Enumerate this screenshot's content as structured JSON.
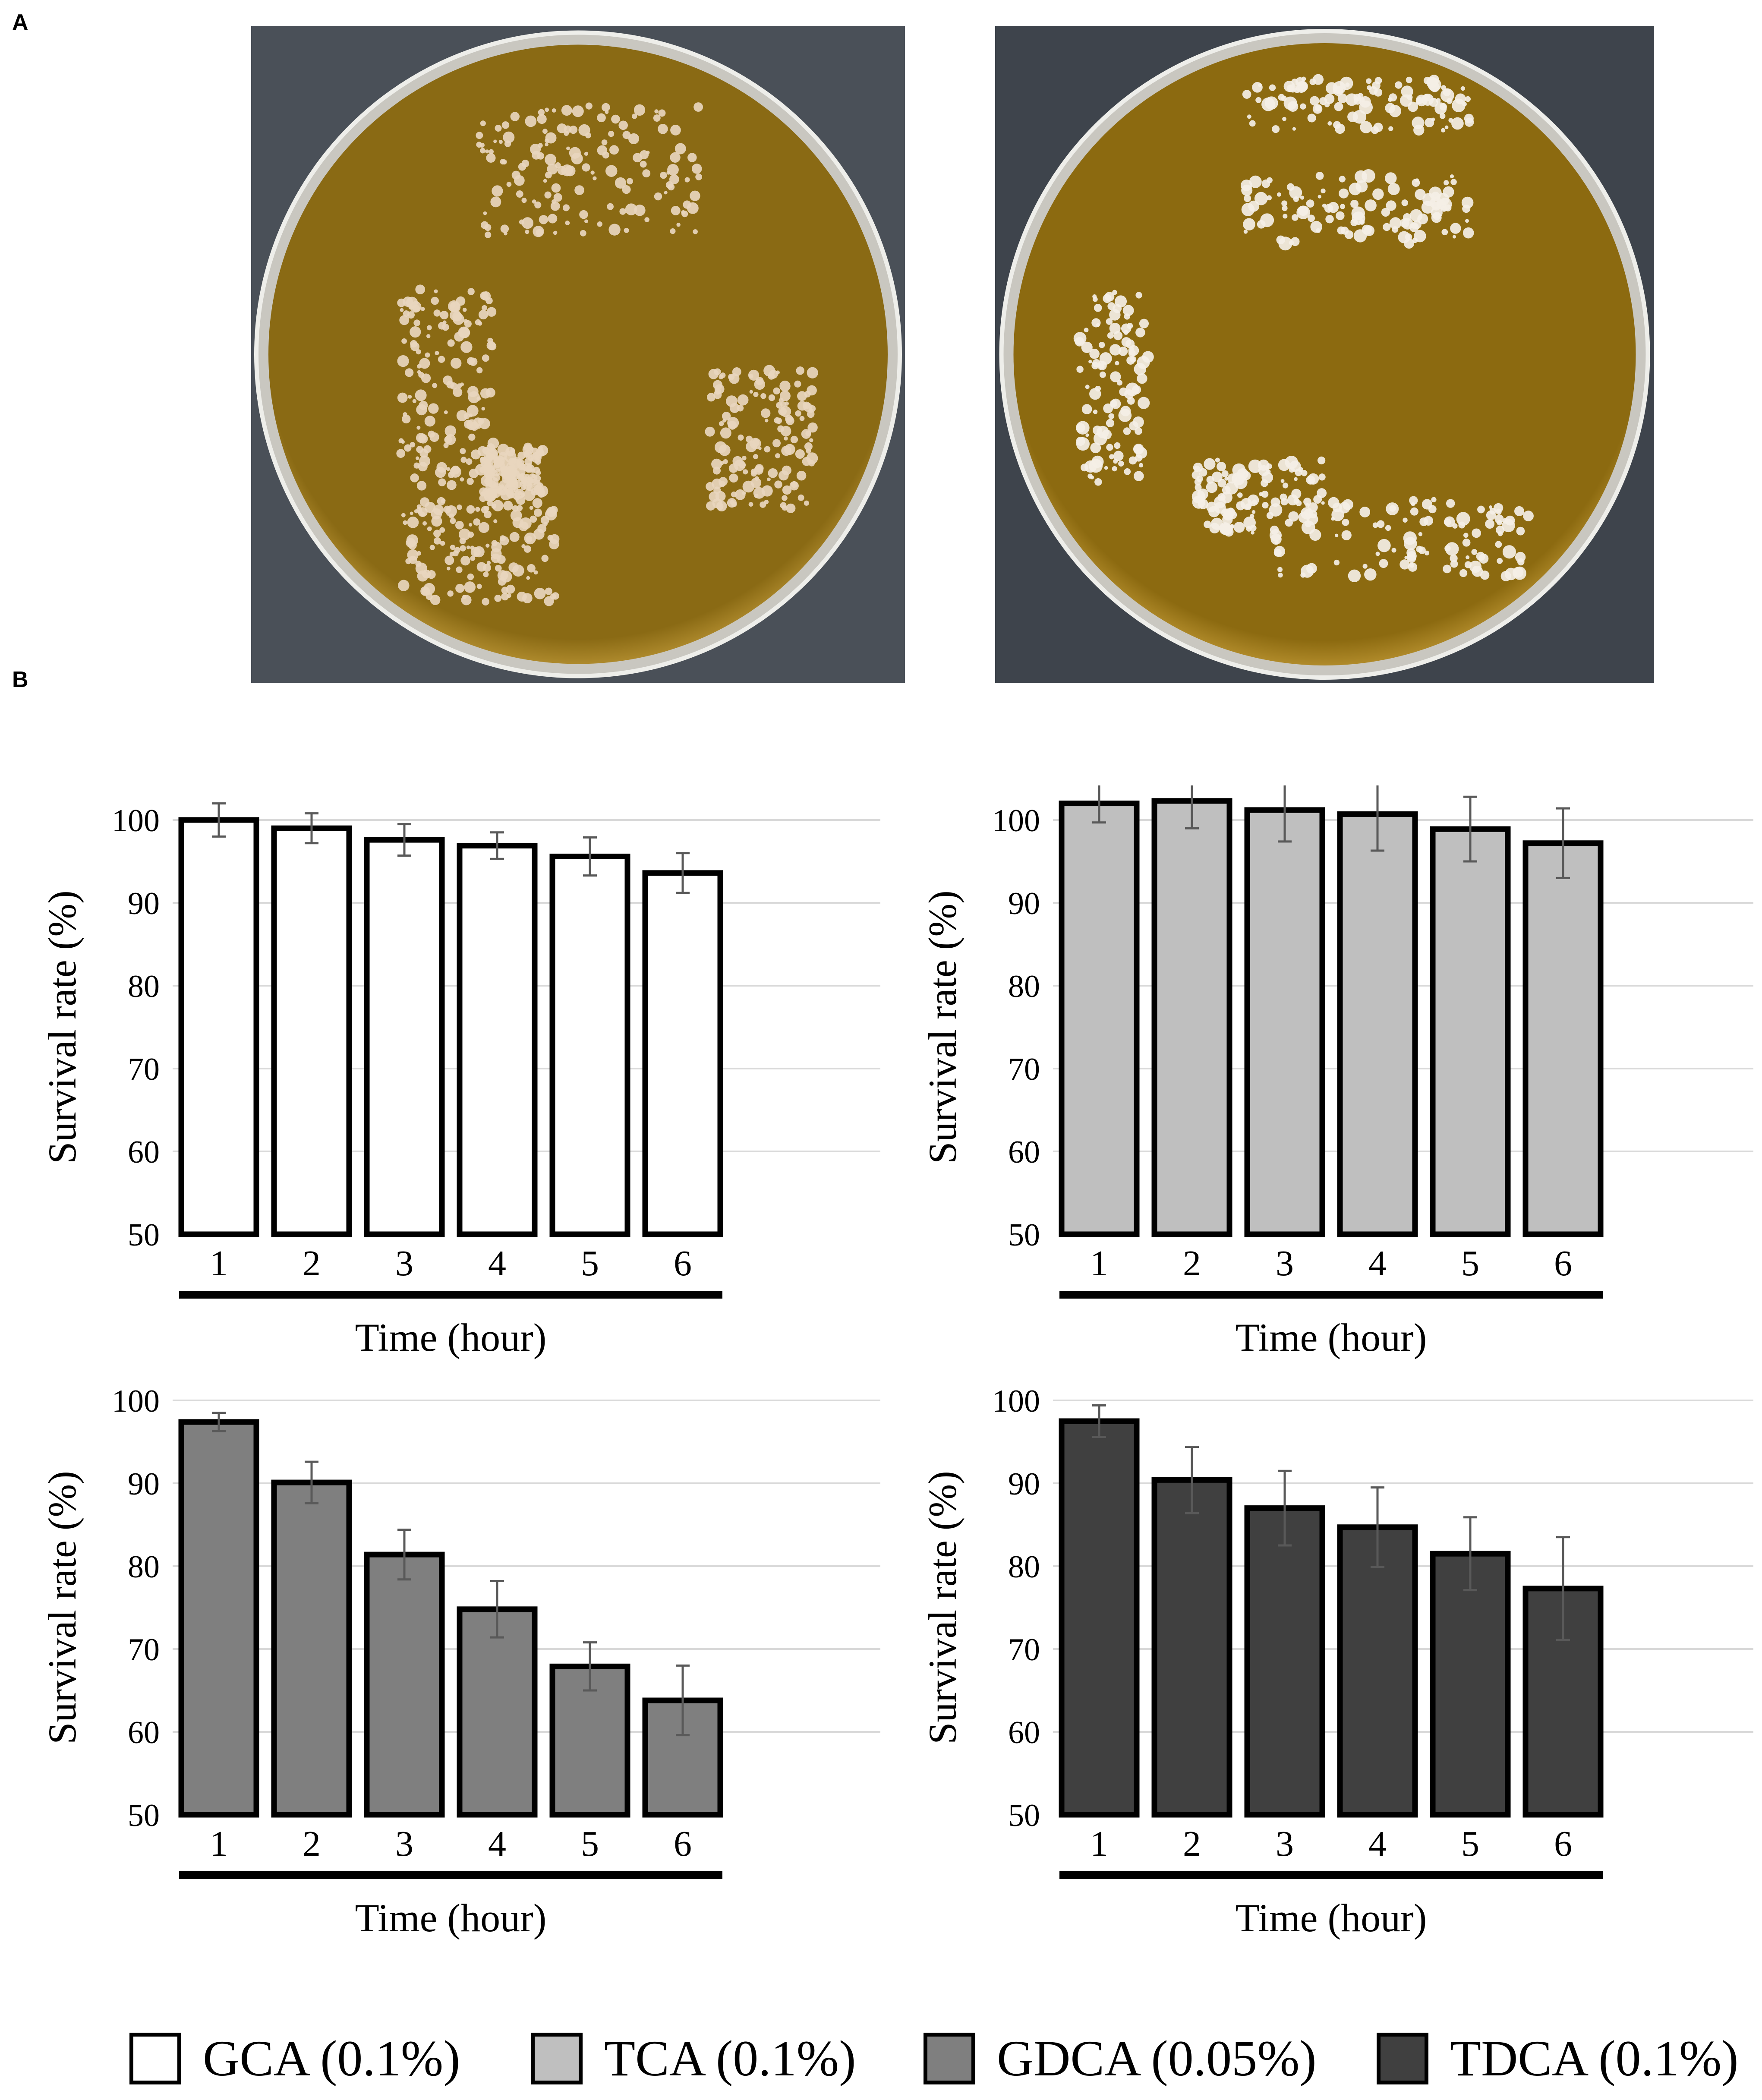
{
  "figure": {
    "panel_a_label": "A",
    "panel_b_label": "B"
  },
  "photos": [
    {
      "plate": "left",
      "agar_color": "#8a6a14",
      "rim_color": "#d9b04a",
      "background_color": "#4a5058"
    },
    {
      "plate": "right",
      "agar_color": "#8c6a10",
      "rim_color": "#dcb24a",
      "background_color": "#3e444c"
    }
  ],
  "legend": [
    {
      "label": "GCA (0.1%)",
      "color": "#ffffff"
    },
    {
      "label": "TCA (0.1%)",
      "color": "#bfbfbf"
    },
    {
      "label": "GDCA (0.05%)",
      "color": "#7f7f7f"
    },
    {
      "label": "TDCA (0.1%)",
      "color": "#404040"
    }
  ],
  "chart_data": [
    {
      "type": "bar",
      "categories": [
        "1",
        "2",
        "3",
        "4",
        "5",
        "6"
      ],
      "series": [
        {
          "name": "GCA (0.1%)",
          "values": [
            100.0,
            99.0,
            97.6,
            96.9,
            95.6,
            93.6
          ],
          "errors": [
            2.0,
            1.8,
            1.9,
            1.6,
            2.3,
            2.4
          ],
          "color": "#ffffff"
        }
      ],
      "xlabel": "Time (hour)",
      "ylabel": "Survival rate (%)",
      "ylim": [
        50,
        100
      ],
      "yticks": [
        50,
        60,
        70,
        80,
        90,
        100
      ],
      "grid": true
    },
    {
      "type": "bar",
      "categories": [
        "1",
        "2",
        "3",
        "4",
        "5",
        "6"
      ],
      "series": [
        {
          "name": "TCA (0.1%)",
          "values": [
            102.0,
            102.3,
            101.2,
            100.7,
            98.9,
            97.2
          ],
          "errors": [
            2.3,
            3.3,
            3.8,
            4.4,
            3.9,
            4.2
          ],
          "color": "#bfbfbf"
        }
      ],
      "xlabel": "Time (hour)",
      "ylabel": "Survival rate (%)",
      "ylim": [
        50,
        100
      ],
      "yticks": [
        50,
        60,
        70,
        80,
        90,
        100
      ],
      "grid": true
    },
    {
      "type": "bar",
      "categories": [
        "1",
        "2",
        "3",
        "4",
        "5",
        "6"
      ],
      "series": [
        {
          "name": "GDCA (0.05%)",
          "values": [
            97.4,
            90.1,
            81.4,
            74.8,
            67.9,
            63.8
          ],
          "errors": [
            1.1,
            2.5,
            3.0,
            3.4,
            2.9,
            4.2
          ],
          "color": "#7f7f7f"
        }
      ],
      "xlabel": "Time (hour)",
      "ylabel": "Survival rate (%)",
      "ylim": [
        50,
        100
      ],
      "yticks": [
        50,
        60,
        70,
        80,
        90,
        100
      ],
      "grid": true
    },
    {
      "type": "bar",
      "categories": [
        "1",
        "2",
        "3",
        "4",
        "5",
        "6"
      ],
      "series": [
        {
          "name": "TDCA (0.1%)",
          "values": [
            97.5,
            90.4,
            87.0,
            84.7,
            81.5,
            77.3
          ],
          "errors": [
            1.9,
            4.0,
            4.5,
            4.8,
            4.4,
            6.2
          ],
          "color": "#404040"
        }
      ],
      "xlabel": "Time (hour)",
      "ylabel": "Survival rate (%)",
      "ylim": [
        50,
        100
      ],
      "yticks": [
        50,
        60,
        70,
        80,
        90,
        100
      ],
      "grid": true
    }
  ]
}
